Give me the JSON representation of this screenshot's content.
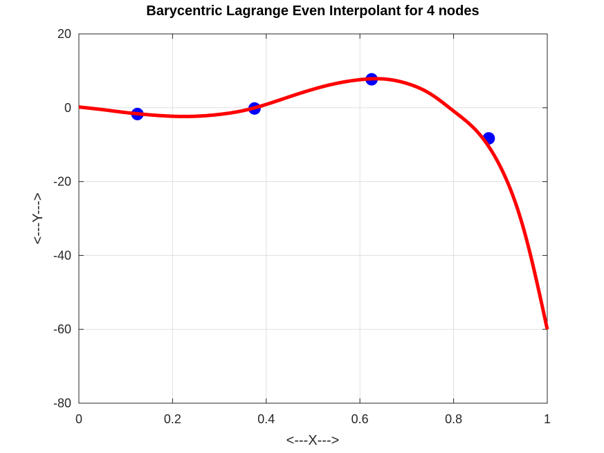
{
  "chart_data": {
    "type": "line",
    "title": "Barycentric Lagrange Even Interpolant for 4 nodes",
    "xlabel": "<---X--->",
    "ylabel": "<---Y--->",
    "xlim": [
      0,
      1
    ],
    "ylim": [
      -80,
      20
    ],
    "xticks": [
      0,
      0.2,
      0.4,
      0.6,
      0.8,
      1
    ],
    "yticks": [
      -80,
      -60,
      -40,
      -20,
      0,
      20
    ],
    "xtick_labels": [
      "0",
      "0.2",
      "0.4",
      "0.6",
      "0.8",
      "1"
    ],
    "ytick_labels": [
      "-80",
      "-60",
      "-40",
      "-20",
      "0",
      "20"
    ],
    "grid": true,
    "series": [
      {
        "kind": "markers",
        "color": "#0000ff",
        "x": [
          0.125,
          0.375,
          0.625,
          0.875
        ],
        "y": [
          -1.7,
          -0.2,
          7.7,
          -8.3
        ]
      },
      {
        "kind": "line",
        "color": "#ff0000",
        "x": [
          0,
          0.05,
          0.1,
          0.15,
          0.2,
          0.25,
          0.3,
          0.35,
          0.4,
          0.45,
          0.5,
          0.55,
          0.6,
          0.65,
          0.7,
          0.75,
          0.8,
          0.85,
          0.9,
          0.95,
          1.0
        ],
        "y": [
          0.2,
          -0.5,
          -1.3,
          -1.9,
          -2.3,
          -2.3,
          -1.8,
          -0.8,
          0.9,
          3.0,
          5.0,
          6.6,
          7.6,
          7.8,
          6.6,
          3.8,
          -0.9,
          -6.4,
          -16.0,
          -33.0,
          -60.0
        ]
      }
    ]
  }
}
